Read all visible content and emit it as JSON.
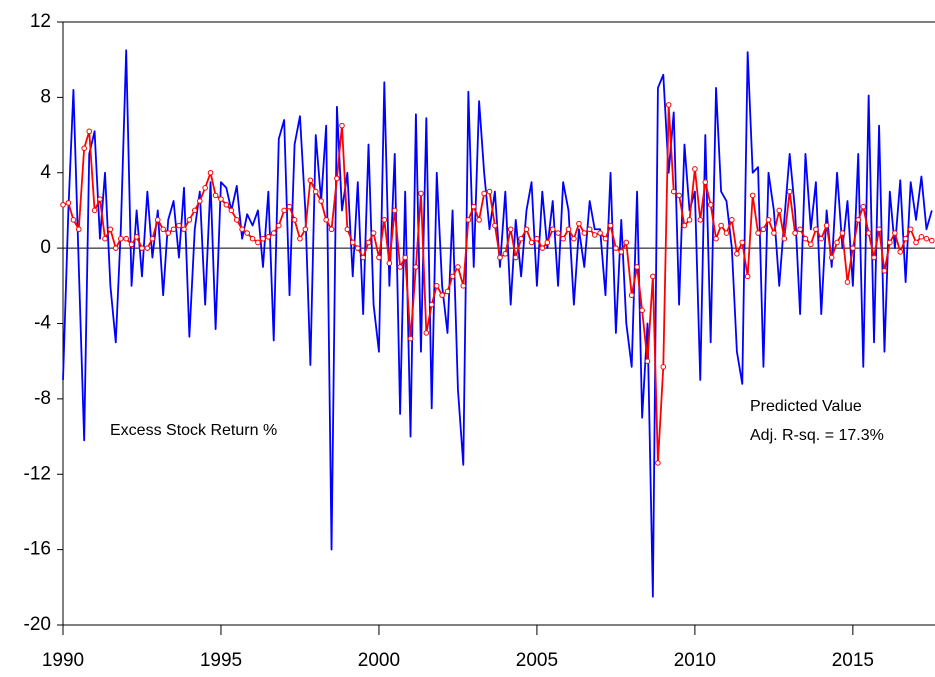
{
  "chart_data": {
    "type": "line",
    "x": [
      1990.0,
      1990.17,
      1990.33,
      1990.5,
      1990.67,
      1990.83,
      1991.0,
      1991.17,
      1991.33,
      1991.5,
      1991.67,
      1991.83,
      1992.0,
      1992.17,
      1992.33,
      1992.5,
      1992.67,
      1992.83,
      1993.0,
      1993.17,
      1993.33,
      1993.5,
      1993.67,
      1993.83,
      1994.0,
      1994.17,
      1994.33,
      1994.5,
      1994.67,
      1994.83,
      1995.0,
      1995.17,
      1995.33,
      1995.5,
      1995.67,
      1995.83,
      1996.0,
      1996.17,
      1996.33,
      1996.5,
      1996.67,
      1996.83,
      1997.0,
      1997.17,
      1997.33,
      1997.5,
      1997.67,
      1997.83,
      1998.0,
      1998.17,
      1998.33,
      1998.5,
      1998.67,
      1998.83,
      1999.0,
      1999.17,
      1999.33,
      1999.5,
      1999.67,
      1999.83,
      2000.0,
      2000.17,
      2000.33,
      2000.5,
      2000.67,
      2000.83,
      2001.0,
      2001.17,
      2001.33,
      2001.5,
      2001.67,
      2001.83,
      2002.0,
      2002.17,
      2002.33,
      2002.5,
      2002.67,
      2002.83,
      2003.0,
      2003.17,
      2003.33,
      2003.5,
      2003.67,
      2003.83,
      2004.0,
      2004.17,
      2004.33,
      2004.5,
      2004.67,
      2004.83,
      2005.0,
      2005.17,
      2005.33,
      2005.5,
      2005.67,
      2005.83,
      2006.0,
      2006.17,
      2006.33,
      2006.5,
      2006.67,
      2006.83,
      2007.0,
      2007.17,
      2007.33,
      2007.5,
      2007.67,
      2007.83,
      2008.0,
      2008.17,
      2008.33,
      2008.5,
      2008.67,
      2008.83,
      2009.0,
      2009.17,
      2009.33,
      2009.5,
      2009.67,
      2009.83,
      2010.0,
      2010.17,
      2010.33,
      2010.5,
      2010.67,
      2010.83,
      2011.0,
      2011.17,
      2011.33,
      2011.5,
      2011.67,
      2011.83,
      2012.0,
      2012.17,
      2012.33,
      2012.5,
      2012.67,
      2012.83,
      2013.0,
      2013.17,
      2013.33,
      2013.5,
      2013.67,
      2013.83,
      2014.0,
      2014.17,
      2014.33,
      2014.5,
      2014.67,
      2014.83,
      2015.0,
      2015.17,
      2015.33,
      2015.5,
      2015.67,
      2015.83,
      2016.0,
      2016.17,
      2016.33,
      2016.5,
      2016.67,
      2016.83,
      2017.0,
      2017.17,
      2017.33,
      2017.5
    ],
    "series": [
      {
        "name": "Excess Stock Return %",
        "color": "#0000ff",
        "marker": false,
        "values": [
          -7,
          2,
          8.4,
          -1,
          -10.2,
          5,
          6.2,
          0.5,
          4,
          -2,
          -5,
          1,
          10.5,
          -2,
          2,
          -1.5,
          3,
          -0.5,
          2,
          -2.5,
          1.5,
          2.5,
          -0.5,
          3.2,
          -4.7,
          1,
          3,
          -3,
          3.5,
          -4.3,
          3.5,
          3.2,
          2,
          3.3,
          0.5,
          1.8,
          1.2,
          2,
          -1,
          3,
          -4.9,
          5.8,
          6.8,
          -2.5,
          5.5,
          7,
          2,
          -6.2,
          6,
          2.5,
          6.5,
          -16,
          7.5,
          2,
          4,
          -1.5,
          3.5,
          -3.5,
          5.5,
          -3,
          -5.5,
          8.8,
          -2,
          5,
          -8.8,
          3,
          -10,
          7.1,
          -5.5,
          6.9,
          -8.5,
          4,
          -2,
          -4.5,
          2,
          -7.5,
          -11.5,
          8.3,
          -1,
          7.8,
          4,
          1,
          3,
          -1,
          3,
          -3,
          1.5,
          -1.5,
          2,
          3.5,
          -2,
          3,
          0,
          2.5,
          -2,
          3.5,
          2,
          -3,
          1,
          -1,
          2.5,
          1,
          1,
          -2.5,
          4,
          -4.5,
          1.5,
          -4,
          -6.3,
          3,
          -9,
          -4,
          -18.5,
          8.5,
          9.2,
          4,
          7.2,
          -3,
          5.5,
          2,
          3,
          -7,
          6,
          -5,
          8.5,
          3,
          2.5,
          0,
          -5.5,
          -7.2,
          10.4,
          4,
          4.3,
          -6.3,
          4,
          2,
          -2,
          1.5,
          5,
          2,
          -3.5,
          5,
          1,
          3.5,
          -3.5,
          2,
          -1,
          4,
          0,
          2.5,
          -2,
          5,
          -6.3,
          8.1,
          -5,
          6.5,
          -5.5,
          3,
          0,
          3.6,
          -1.8,
          3.5,
          1.5,
          3.8,
          1,
          2
        ]
      },
      {
        "name": "Predicted Value",
        "color": "#ff0000",
        "marker": true,
        "values": [
          2.3,
          2.4,
          1.5,
          1,
          5.3,
          6.2,
          2,
          2.6,
          0.5,
          1,
          0,
          0.5,
          0.5,
          0.2,
          0.6,
          0,
          0,
          0.5,
          1.5,
          1,
          0.8,
          1,
          1.2,
          1,
          1.5,
          2,
          2.5,
          3.2,
          4,
          2.8,
          2.6,
          2.3,
          2,
          1.5,
          1,
          0.8,
          0.5,
          0.3,
          0.5,
          0.6,
          0.8,
          1.2,
          2,
          2.2,
          1.5,
          0.5,
          1,
          3.6,
          3,
          2.5,
          1.5,
          1,
          3.7,
          6.5,
          1,
          0.3,
          0,
          -0.5,
          0.3,
          0.8,
          -0.5,
          1.5,
          -0.8,
          2,
          -1,
          -0.5,
          -4.8,
          -1,
          2.9,
          -4.5,
          -3,
          -2,
          -2.5,
          -2.3,
          -1.5,
          -1,
          -2,
          1.5,
          2.2,
          1.5,
          2.9,
          3,
          1.2,
          -0.5,
          -0.3,
          1,
          -0.5,
          0.5,
          1,
          0.3,
          0.5,
          0,
          0.3,
          1,
          0.8,
          0.5,
          1,
          0.5,
          1.3,
          0.8,
          1,
          0.7,
          0.8,
          0.5,
          1.2,
          0,
          -0.2,
          0.3,
          -2.5,
          -1,
          -3.3,
          -6,
          -1.5,
          -11.4,
          -6.3,
          7.6,
          3,
          2.8,
          1.2,
          1.5,
          4.2,
          1.5,
          3.5,
          2.3,
          0.5,
          1.2,
          0.8,
          1.5,
          -0.3,
          0.3,
          -1.5,
          2.8,
          0.8,
          1,
          1.5,
          0.8,
          2,
          0.5,
          3,
          0.8,
          1,
          0.5,
          0.2,
          1,
          0.5,
          1.2,
          -0.5,
          0.3,
          0.8,
          -1.8,
          0,
          1.5,
          2.2,
          0.8,
          -0.5,
          1,
          -1.2,
          0.3,
          0.8,
          -0.2,
          0.5,
          1,
          0.3,
          0.6,
          0.5,
          0.4
        ]
      }
    ],
    "note": "Adj. R-sq. = 17.3%",
    "xlim": [
      1990,
      2017.6
    ],
    "xticks": [
      1990,
      1995,
      2000,
      2005,
      2010,
      2015
    ],
    "ylim": [
      -20,
      12
    ],
    "yticks": [
      12,
      8,
      4,
      0,
      -4,
      -8,
      -12,
      -16,
      -20
    ],
    "zero_line": true
  }
}
